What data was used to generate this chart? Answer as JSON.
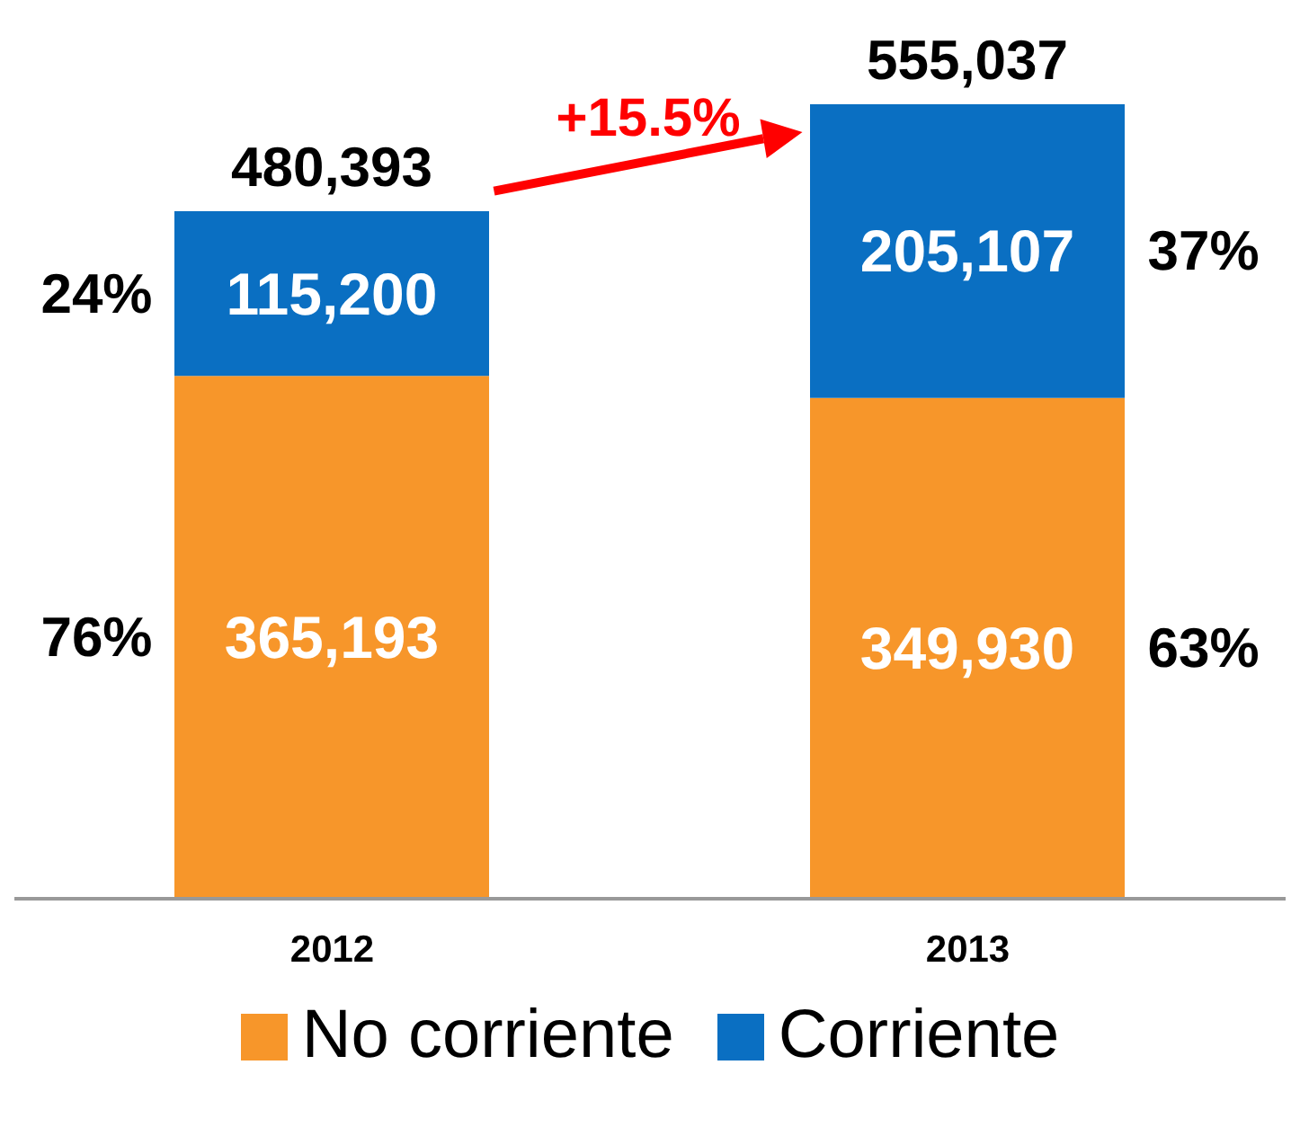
{
  "chart_data": {
    "type": "bar",
    "stacked": true,
    "categories": [
      "2012",
      "2013"
    ],
    "series": [
      {
        "name": "No corriente",
        "color": "#f7962a",
        "values": [
          365193,
          349930
        ],
        "value_labels": [
          "365,193",
          "349,930"
        ]
      },
      {
        "name": "Corriente",
        "color": "#0a6fc2",
        "values": [
          115200,
          205107
        ],
        "value_labels": [
          "115,200",
          "205,107"
        ]
      }
    ],
    "totals": [
      "480,393",
      "555,037"
    ],
    "annotations": [
      "+15.5%",
      "76%",
      "24%",
      "63%",
      "37%"
    ],
    "legend": "bottom",
    "grid": false
  }
}
